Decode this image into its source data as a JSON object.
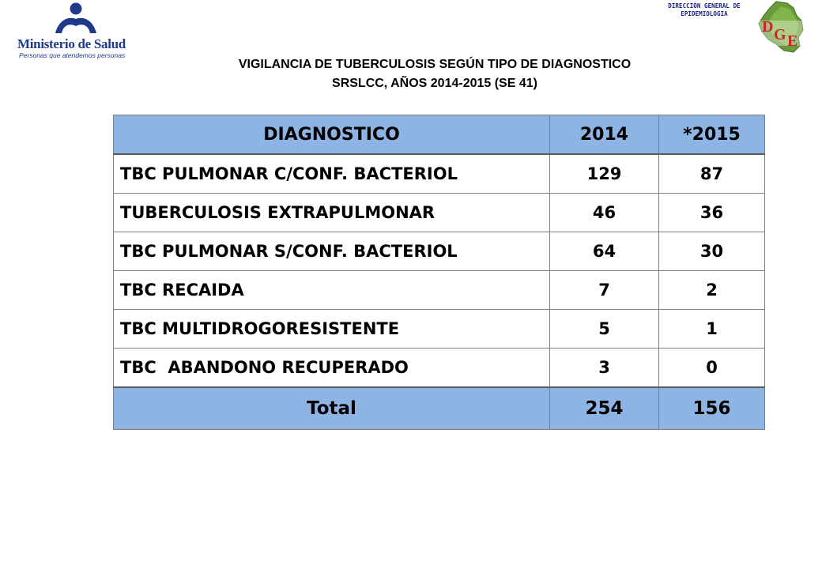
{
  "header": {
    "org_name": "Ministerio de Salud",
    "org_tagline": "Personas que atendemos personas",
    "dge_label_line1": "DIRECCIÓN GENERAL DE",
    "dge_label_line2": "EPIDEMIOLOGIA",
    "dge_logo_letters": [
      "D",
      "G",
      "E"
    ]
  },
  "title": {
    "line1": "VIGILANCIA DE TUBERCULOSIS SEGÚN TIPO DE DIAGNOSTICO",
    "line2": "SRSLCC, AÑOS 2014-2015 (SE 41)"
  },
  "table": {
    "columns": [
      "DIAGNOSTICO",
      "2014",
      "*2015"
    ],
    "rows": [
      {
        "name": "TBC PULMONAR C/CONF. BACTERIOL",
        "y2014": "129",
        "y2015": "87"
      },
      {
        "name": "TUBERCULOSIS EXTRAPULMONAR",
        "y2014": "46",
        "y2015": "36"
      },
      {
        "name": "TBC PULMONAR S/CONF. BACTERIOL",
        "y2014": "64",
        "y2015": "30"
      },
      {
        "name": "TBC RECAIDA",
        "y2014": "7",
        "y2015": "2"
      },
      {
        "name": "TBC MULTIDROGORESISTENTE",
        "y2014": "5",
        "y2015": "1"
      },
      {
        "name": "TBC  ABANDONO RECUPERADO",
        "y2014": "3",
        "y2015": "0"
      }
    ],
    "total": {
      "name": "Total",
      "y2014": "254",
      "y2015": "156"
    }
  },
  "colors": {
    "header_fill": "#8eb4e3",
    "brand_blue": "#1f3a8a",
    "dge_red": "#c62828",
    "dge_green": "#4e7d2a"
  }
}
